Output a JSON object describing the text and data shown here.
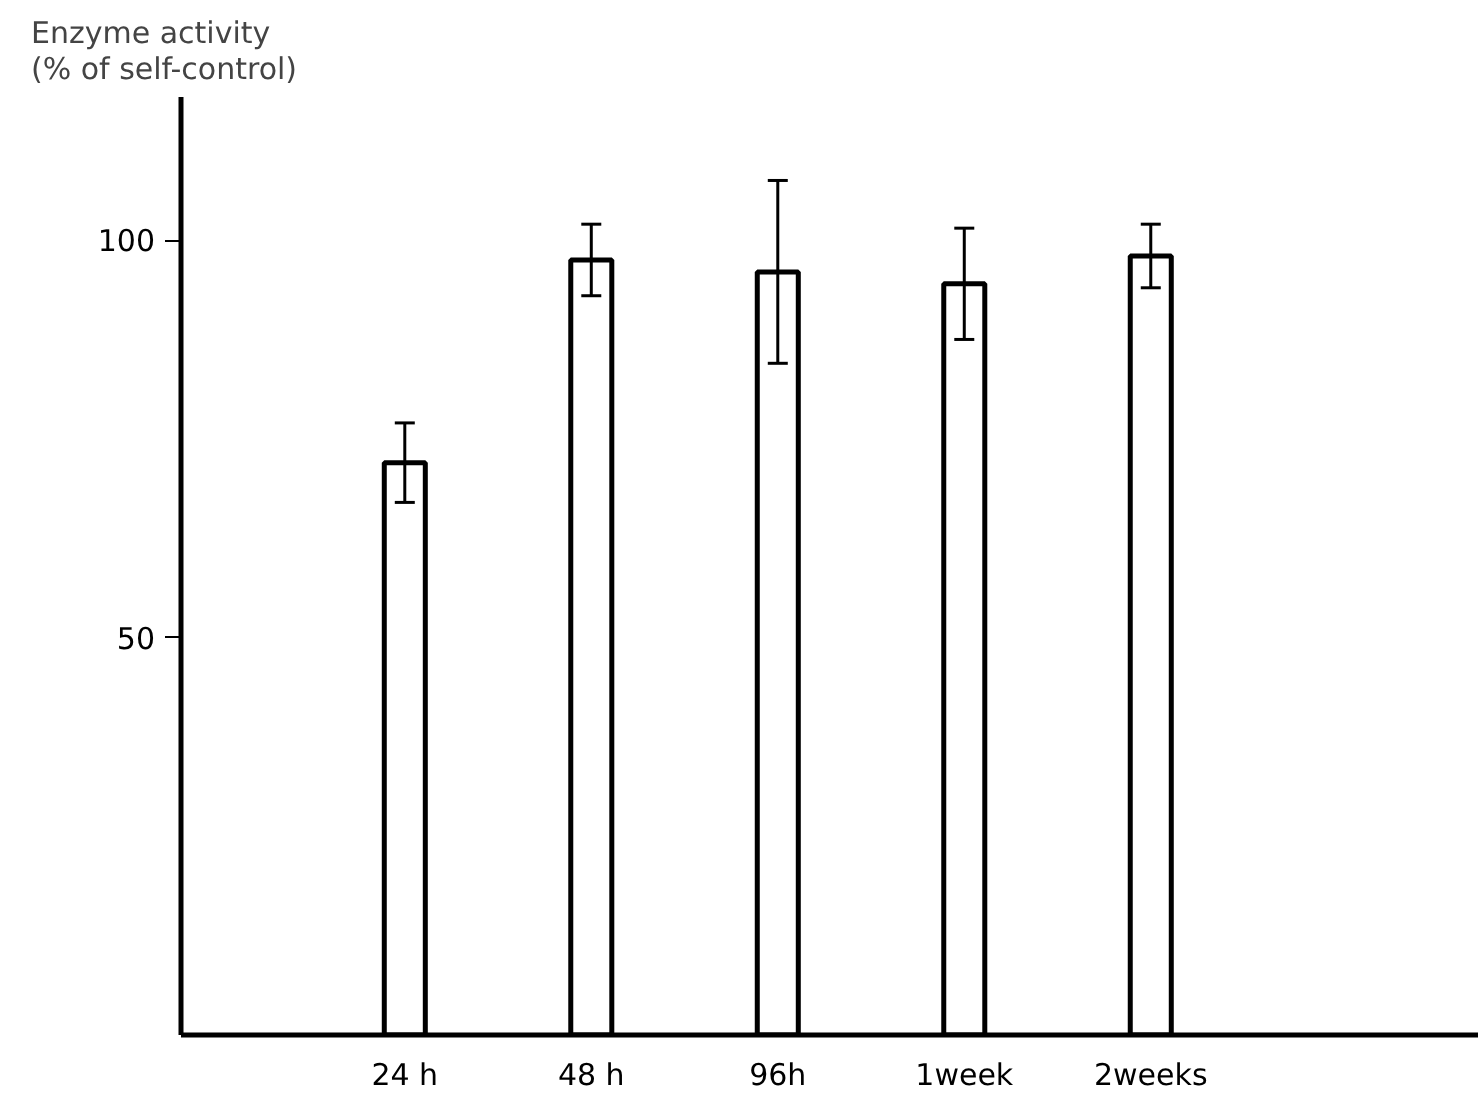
{
  "chart_data": {
    "type": "bar",
    "ylabel": "Enzyme activity\n(% of self-control)",
    "categories": [
      "24 h",
      "48 h",
      "96h",
      "1week",
      "2weeks"
    ],
    "values": [
      72,
      97.5,
      96,
      94.5,
      98
    ],
    "errors": [
      5,
      4.5,
      11.5,
      7,
      4
    ],
    "color": "#ffffff",
    "ylim": [
      0,
      118
    ],
    "yticks": [
      50,
      100
    ],
    "grid": false
  }
}
